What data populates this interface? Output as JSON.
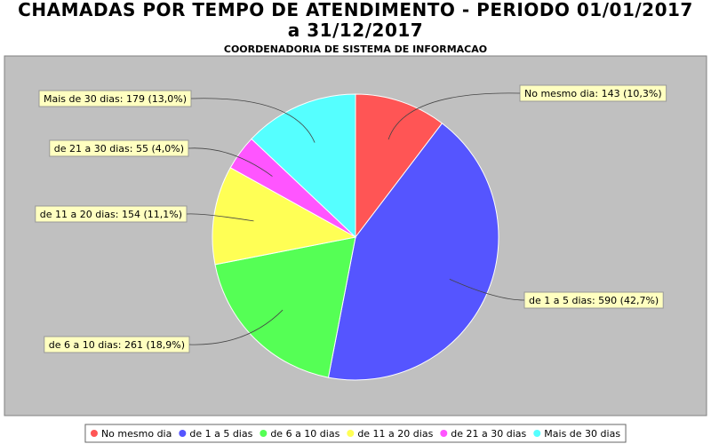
{
  "chart_data": {
    "type": "pie",
    "title": "CHAMADAS POR TEMPO DE ATENDIMENTO - PERIODO 01/01/2017 a 31/12/2017",
    "subtitle": "COORDENADORIA DE SISTEMA DE INFORMACAO",
    "categories": [
      "No mesmo dia",
      "de 1 a 5 dias",
      "de 6 a 10 dias",
      "de 11 a 20 dias",
      "de 21 a 30 dias",
      "Mais de 30 dias"
    ],
    "values": [
      143,
      590,
      261,
      154,
      55,
      179
    ],
    "value_labels": [
      "No mesmo dia: 143 (10,3%)",
      "de 1 a 5 dias: 590 (42,7%)",
      "de 6 a 10 dias: 261 (18,9%)",
      "de 11 a 20 dias: 154 (11,1%)",
      "de 21 a 30 dias: 55 (4,0%)",
      "Mais de 30 dias: 179 (13,0%)"
    ],
    "colors": [
      "#ff5555",
      "#5555ff",
      "#55ff55",
      "#ffff55",
      "#ff55ff",
      "#55ffff"
    ],
    "legend": "bottom"
  }
}
